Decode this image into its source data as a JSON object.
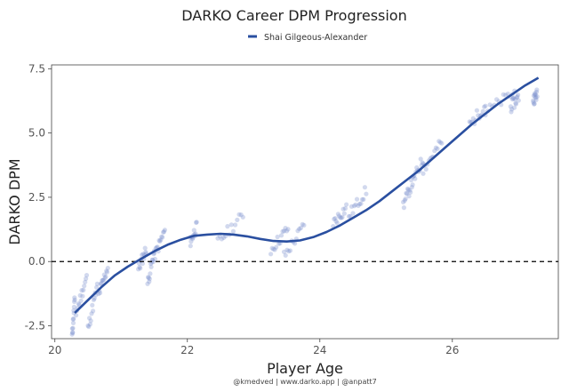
{
  "chart_data": {
    "type": "scatter",
    "title": "DARKO Career DPM Progression",
    "xlabel": "Player Age",
    "ylabel": "DARKO DPM",
    "caption": "@kmedved | www.darko.app | @anpatt7",
    "xlim": [
      19.95,
      27.6
    ],
    "ylim": [
      -3.0,
      7.65
    ],
    "xticks": [
      20,
      22,
      24,
      26
    ],
    "yticks": [
      -2.5,
      0.0,
      2.5,
      5.0,
      7.5
    ],
    "ytick_labels": [
      "-2.5",
      "0.0",
      "2.5",
      "5.0",
      "7.5"
    ],
    "reference_line": {
      "y": 0,
      "style": "dashed"
    },
    "grid": false,
    "legend_position": "top-center",
    "colors": {
      "series": "#2a4fa0",
      "points": "#7f93cf",
      "reference": "#000000"
    },
    "series": [
      {
        "name": "Shai Gilgeous-Alexander",
        "type": "line",
        "x": [
          20.3,
          20.5,
          20.7,
          20.9,
          21.1,
          21.3,
          21.5,
          21.7,
          21.9,
          22.1,
          22.3,
          22.5,
          22.7,
          22.9,
          23.1,
          23.3,
          23.5,
          23.7,
          23.9,
          24.1,
          24.3,
          24.5,
          24.7,
          24.9,
          25.1,
          25.3,
          25.5,
          25.7,
          25.9,
          26.1,
          26.3,
          26.5,
          26.7,
          26.9,
          27.1,
          27.3
        ],
        "y": [
          -2.0,
          -1.5,
          -1.0,
          -0.55,
          -0.2,
          0.1,
          0.4,
          0.65,
          0.85,
          1.0,
          1.05,
          1.08,
          1.05,
          0.98,
          0.88,
          0.8,
          0.78,
          0.82,
          0.95,
          1.15,
          1.4,
          1.7,
          2.0,
          2.35,
          2.75,
          3.15,
          3.55,
          4.0,
          4.45,
          4.9,
          5.35,
          5.75,
          6.15,
          6.5,
          6.85,
          7.15
        ]
      }
    ],
    "points_clusters": [
      {
        "x": [
          20.26,
          20.3
        ],
        "y": [
          -2.9,
          -1.5
        ]
      },
      {
        "x": [
          20.32,
          20.48
        ],
        "y": [
          -2.0,
          -0.6
        ]
      },
      {
        "x": [
          20.5,
          20.64
        ],
        "y": [
          -2.6,
          -1.0
        ]
      },
      {
        "x": [
          20.66,
          20.8
        ],
        "y": [
          -1.3,
          -0.2
        ]
      },
      {
        "x": [
          21.26,
          21.38
        ],
        "y": [
          -0.3,
          0.5
        ]
      },
      {
        "x": [
          21.4,
          21.5
        ],
        "y": [
          -0.85,
          0.35
        ]
      },
      {
        "x": [
          21.5,
          21.66
        ],
        "y": [
          0.2,
          1.2
        ]
      },
      {
        "x": [
          22.04,
          22.14
        ],
        "y": [
          0.75,
          1.35
        ]
      },
      {
        "x": [
          22.46,
          22.84
        ],
        "y": [
          0.75,
          1.8
        ]
      },
      {
        "x": [
          23.26,
          23.52
        ],
        "y": [
          0.45,
          1.3
        ]
      },
      {
        "x": [
          23.46,
          23.76
        ],
        "y": [
          0.2,
          1.4
        ]
      },
      {
        "x": [
          24.2,
          24.4
        ],
        "y": [
          1.5,
          2.1
        ]
      },
      {
        "x": [
          24.44,
          24.7
        ],
        "y": [
          1.8,
          2.75
        ]
      },
      {
        "x": [
          25.26,
          25.4
        ],
        "y": [
          2.2,
          3.1
        ]
      },
      {
        "x": [
          25.4,
          25.56
        ],
        "y": [
          3.1,
          4.0
        ]
      },
      {
        "x": [
          25.56,
          25.84
        ],
        "y": [
          3.6,
          4.65
        ]
      },
      {
        "x": [
          26.26,
          26.5
        ],
        "y": [
          5.3,
          6.1
        ]
      },
      {
        "x": [
          26.5,
          26.94
        ],
        "y": [
          5.8,
          6.6
        ]
      },
      {
        "x": [
          26.88,
          27.0
        ],
        "y": [
          6.0,
          6.4
        ]
      },
      {
        "x": [
          27.22,
          27.28
        ],
        "y": [
          6.3,
          6.5
        ]
      }
    ]
  }
}
